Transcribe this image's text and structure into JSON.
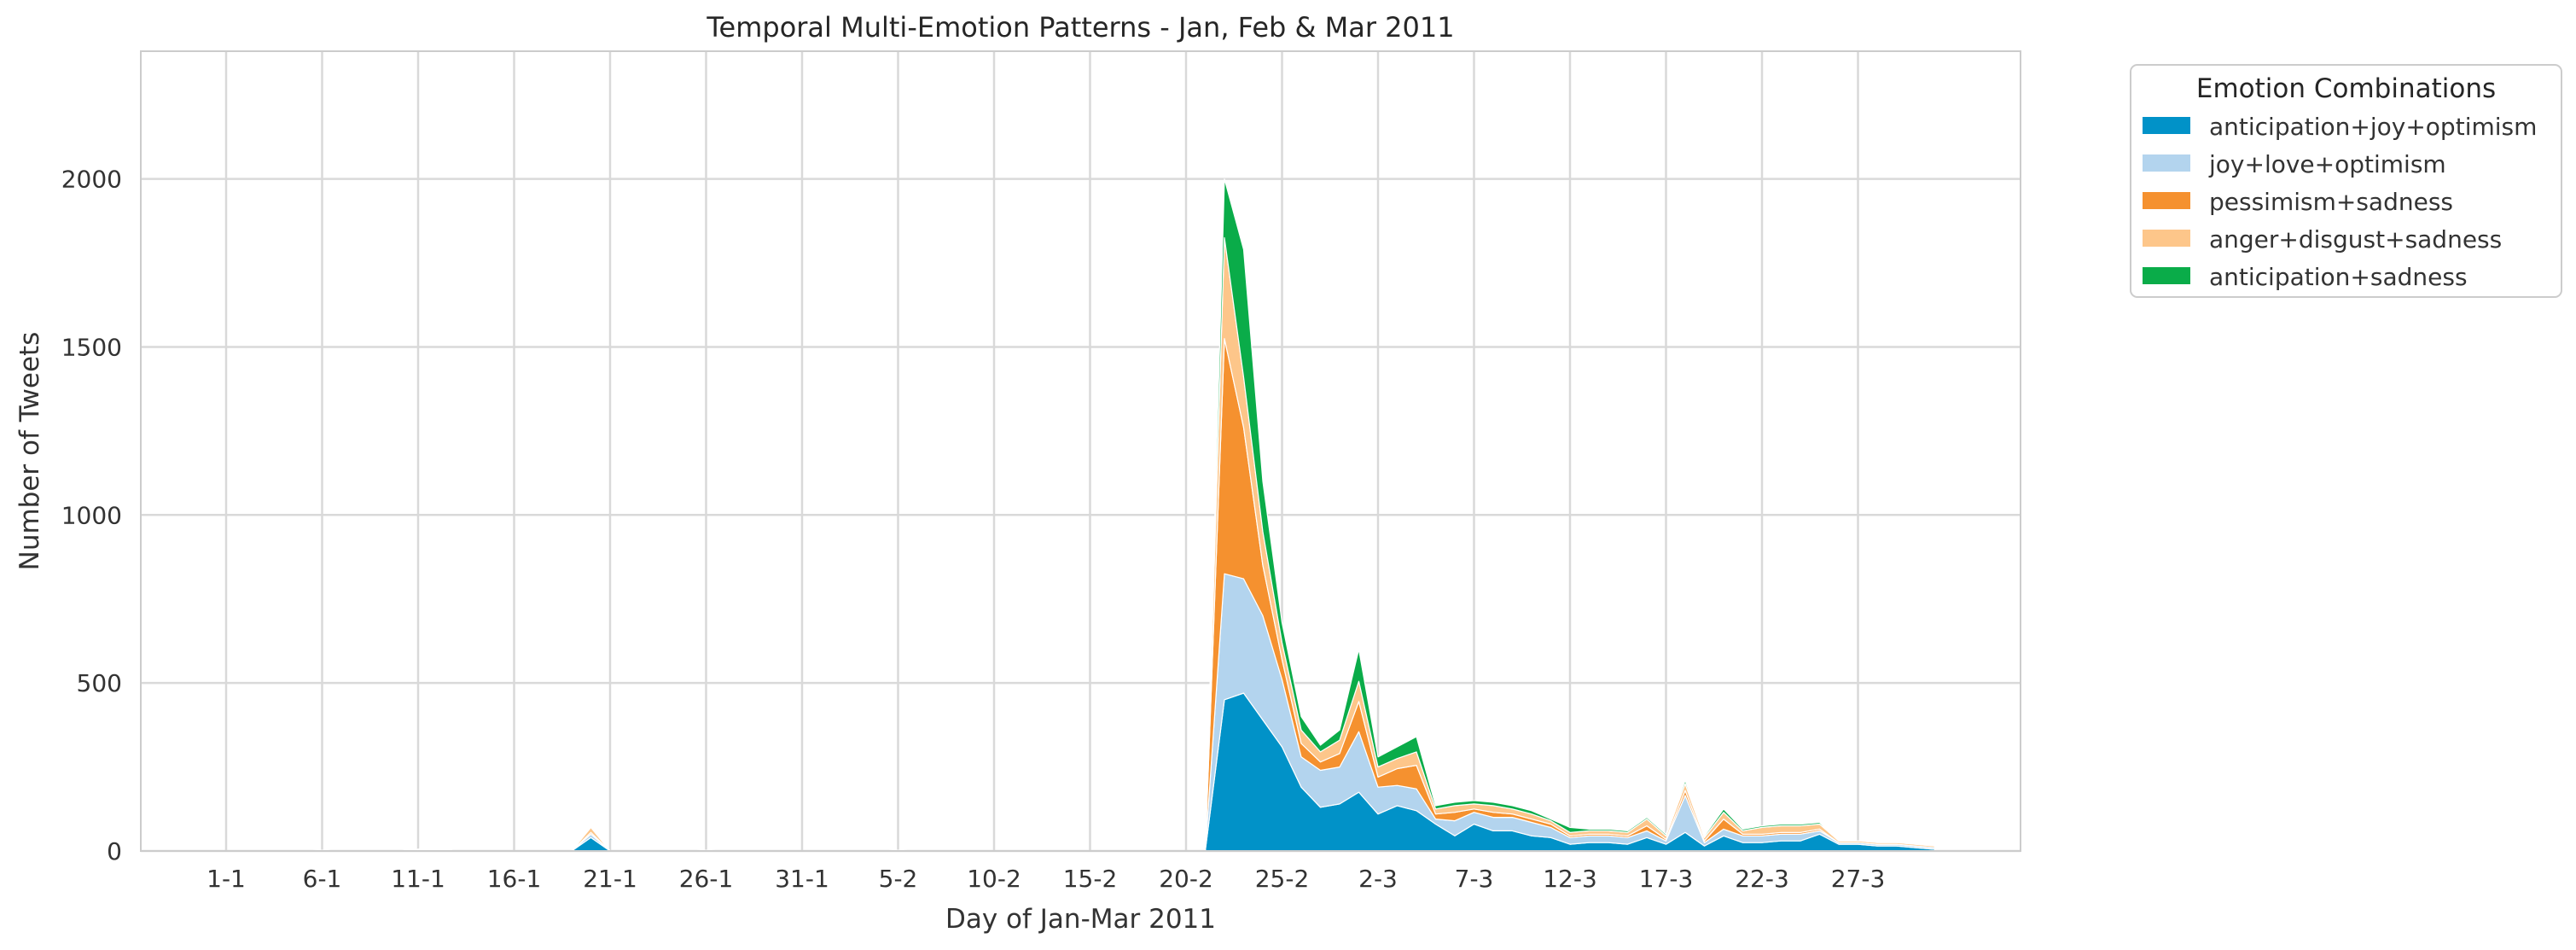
{
  "chart_data": {
    "type": "area",
    "stacked": true,
    "title": "Temporal Multi-Emotion Patterns - Jan, Feb & Mar 2011",
    "xlabel": "Day of Jan-Mar 2011",
    "ylabel": "Number of Tweets",
    "ylim": [
      0,
      2380
    ],
    "yticks": [
      0,
      500,
      1000,
      1500,
      2000
    ],
    "xticks": [
      "1-1",
      "6-1",
      "11-1",
      "16-1",
      "21-1",
      "26-1",
      "31-1",
      "5-2",
      "10-2",
      "15-2",
      "20-2",
      "25-2",
      "2-3",
      "7-3",
      "12-3",
      "17-3",
      "22-3",
      "27-3"
    ],
    "grid": true,
    "legend": {
      "title": "Emotion Combinations",
      "placement": "outside-top-right"
    },
    "x": [
      "1-1",
      "2-1",
      "3-1",
      "4-1",
      "5-1",
      "6-1",
      "7-1",
      "8-1",
      "9-1",
      "10-1",
      "11-1",
      "12-1",
      "13-1",
      "14-1",
      "15-1",
      "16-1",
      "17-1",
      "18-1",
      "19-1",
      "20-1",
      "21-1",
      "22-1",
      "23-1",
      "24-1",
      "25-1",
      "26-1",
      "27-1",
      "28-1",
      "29-1",
      "30-1",
      "31-1",
      "1-2",
      "2-2",
      "3-2",
      "4-2",
      "5-2",
      "6-2",
      "7-2",
      "8-2",
      "9-2",
      "10-2",
      "11-2",
      "12-2",
      "13-2",
      "14-2",
      "15-2",
      "16-2",
      "17-2",
      "18-2",
      "19-2",
      "20-2",
      "21-2",
      "22-2",
      "23-2",
      "24-2",
      "25-2",
      "26-2",
      "27-2",
      "28-2",
      "1-3",
      "2-3",
      "3-3",
      "4-3",
      "5-3",
      "6-3",
      "7-3",
      "8-3",
      "9-3",
      "10-3",
      "11-3",
      "12-3",
      "13-3",
      "14-3",
      "15-3",
      "16-3",
      "17-3",
      "18-3",
      "19-3",
      "20-3",
      "21-3",
      "22-3",
      "23-3",
      "24-3",
      "25-3",
      "26-3",
      "27-3",
      "28-3",
      "29-3",
      "30-3",
      "31-3"
    ],
    "series": [
      {
        "name": "anticipation+joy+optimism",
        "color": "#0192c8",
        "values": [
          0,
          0,
          0,
          0,
          0,
          0,
          0,
          0,
          0,
          0,
          2,
          2,
          0,
          0,
          0,
          0,
          0,
          0,
          0,
          40,
          0,
          0,
          0,
          0,
          0,
          0,
          0,
          0,
          0,
          0,
          0,
          0,
          0,
          0,
          0,
          0,
          0,
          0,
          0,
          0,
          0,
          0,
          0,
          0,
          0,
          0,
          0,
          0,
          0,
          0,
          0,
          0,
          450,
          470,
          390,
          310,
          190,
          130,
          140,
          175,
          110,
          135,
          120,
          80,
          45,
          80,
          60,
          60,
          45,
          40,
          20,
          25,
          25,
          20,
          40,
          20,
          55,
          15,
          45,
          25,
          25,
          30,
          30,
          50,
          20,
          20,
          15,
          15,
          10,
          5
        ]
      },
      {
        "name": "joy+love+optimism",
        "color": "#b3d4ee",
        "values": [
          0,
          0,
          0,
          0,
          0,
          2,
          0,
          0,
          0,
          0,
          3,
          3,
          0,
          0,
          0,
          0,
          0,
          0,
          0,
          10,
          0,
          0,
          0,
          0,
          0,
          2,
          0,
          0,
          0,
          0,
          0,
          0,
          0,
          0,
          0,
          2,
          0,
          0,
          0,
          0,
          0,
          0,
          0,
          0,
          0,
          0,
          0,
          0,
          0,
          0,
          0,
          0,
          375,
          340,
          310,
          200,
          90,
          110,
          110,
          180,
          80,
          60,
          65,
          15,
          45,
          35,
          40,
          40,
          40,
          30,
          20,
          20,
          20,
          20,
          20,
          10,
          110,
          10,
          20,
          20,
          20,
          20,
          20,
          10,
          5,
          5,
          5,
          5,
          5,
          5
        ]
      },
      {
        "name": "pessimism+sadness",
        "color": "#f5912f",
        "values": [
          0,
          0,
          0,
          0,
          0,
          0,
          0,
          0,
          0,
          0,
          0,
          0,
          0,
          0,
          0,
          0,
          0,
          0,
          0,
          5,
          0,
          0,
          0,
          0,
          0,
          0,
          0,
          0,
          0,
          0,
          0,
          0,
          0,
          0,
          0,
          0,
          0,
          0,
          0,
          0,
          0,
          0,
          0,
          0,
          0,
          0,
          0,
          0,
          0,
          0,
          0,
          0,
          700,
          450,
          150,
          60,
          40,
          25,
          40,
          90,
          30,
          50,
          70,
          15,
          25,
          10,
          15,
          10,
          10,
          10,
          5,
          5,
          5,
          5,
          15,
          5,
          15,
          5,
          30,
          5,
          5,
          5,
          5,
          5,
          0,
          0,
          0,
          0,
          0,
          0
        ]
      },
      {
        "name": "anger+disgust+sadness",
        "color": "#fdc68a",
        "values": [
          0,
          0,
          0,
          0,
          0,
          0,
          0,
          0,
          0,
          0,
          0,
          0,
          0,
          0,
          0,
          0,
          0,
          0,
          0,
          15,
          0,
          0,
          0,
          0,
          0,
          0,
          0,
          0,
          0,
          0,
          0,
          0,
          0,
          0,
          0,
          0,
          0,
          0,
          0,
          0,
          0,
          0,
          0,
          0,
          0,
          0,
          0,
          0,
          0,
          0,
          0,
          0,
          300,
          150,
          100,
          50,
          40,
          30,
          40,
          60,
          30,
          30,
          40,
          15,
          20,
          15,
          20,
          15,
          15,
          10,
          10,
          10,
          10,
          10,
          20,
          10,
          20,
          10,
          20,
          10,
          20,
          20,
          20,
          15,
          5,
          5,
          5,
          5,
          5,
          5
        ]
      },
      {
        "name": "anticipation+sadness",
        "color": "#0aac49",
        "values": [
          0,
          0,
          0,
          0,
          0,
          0,
          0,
          0,
          0,
          0,
          0,
          0,
          0,
          0,
          0,
          0,
          0,
          0,
          0,
          0,
          0,
          0,
          0,
          0,
          0,
          0,
          0,
          0,
          0,
          0,
          0,
          0,
          0,
          0,
          0,
          0,
          0,
          0,
          0,
          0,
          0,
          0,
          0,
          0,
          0,
          0,
          0,
          0,
          0,
          0,
          0,
          0,
          175,
          380,
          150,
          60,
          40,
          20,
          30,
          95,
          30,
          35,
          45,
          10,
          10,
          10,
          10,
          10,
          10,
          5,
          15,
          5,
          5,
          5,
          5,
          5,
          10,
          5,
          10,
          5,
          5,
          5,
          5,
          5,
          0,
          0,
          0,
          0,
          0,
          0
        ]
      }
    ]
  }
}
